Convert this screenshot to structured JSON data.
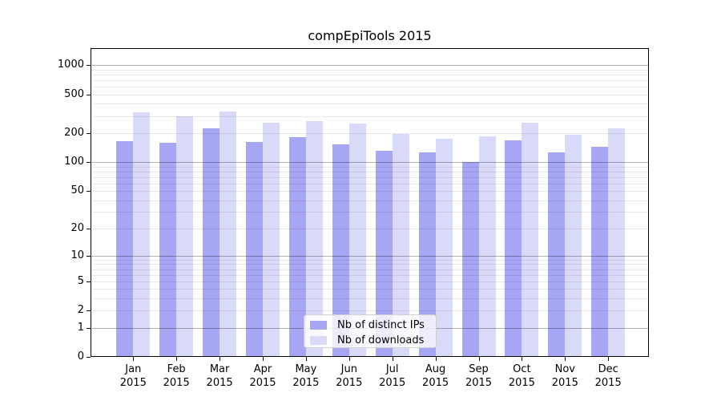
{
  "chart_data": {
    "type": "bar",
    "title": "compEpiTools 2015",
    "categories": [
      "Jan 2015",
      "Feb 2015",
      "Mar 2015",
      "Apr 2015",
      "May 2015",
      "Jun 2015",
      "Jul 2015",
      "Aug 2015",
      "Sep 2015",
      "Oct 2015",
      "Nov 2015",
      "Dec 2015"
    ],
    "series": [
      {
        "name": "Nb of distinct IPs",
        "color": "#a6a6f4",
        "values": [
          166,
          158,
          225,
          163,
          181,
          153,
          132,
          125,
          100,
          168,
          127,
          145
        ]
      },
      {
        "name": "Nb of downloads",
        "color": "#d9d9f8",
        "values": [
          325,
          300,
          334,
          257,
          263,
          250,
          197,
          176,
          184,
          257,
          192,
          225
        ]
      }
    ],
    "xlabel": "",
    "ylabel": "",
    "yscale": "log1p",
    "yticks": [
      0,
      1,
      2,
      5,
      10,
      20,
      50,
      100,
      200,
      500,
      1000
    ],
    "ylim": [
      0,
      1500
    ],
    "grid": {
      "orientation": "horizontal",
      "major_at": [
        1,
        10,
        100,
        1000
      ],
      "minor_decades": [
        1,
        10,
        100
      ],
      "major_color": "#b3b3b3",
      "minor_color": "#e9e9e9",
      "drawn_above_bars": true
    },
    "legend": {
      "position": "inside-bottom-center",
      "background": "#ffffff",
      "border_color": "#d0d0d0"
    },
    "background": "#ffffff",
    "axis_color": "#000000"
  }
}
